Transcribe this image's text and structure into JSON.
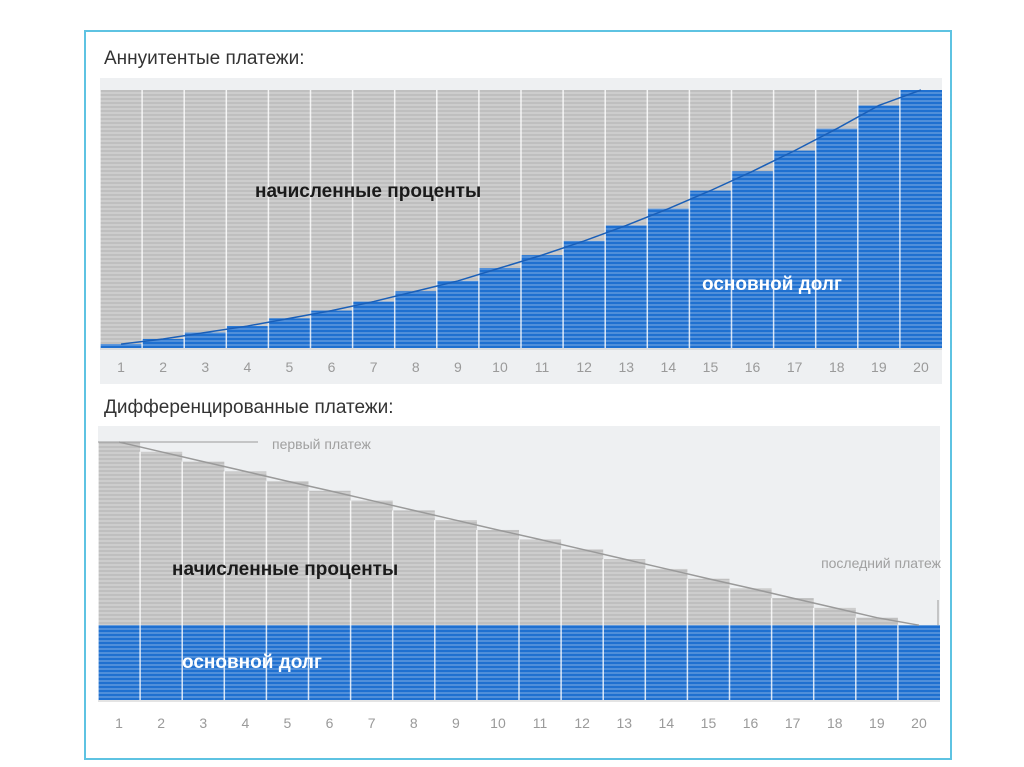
{
  "chart_data": [
    {
      "type": "area",
      "title": "Аннуитентые платежи:",
      "x": [
        1,
        2,
        3,
        4,
        5,
        6,
        7,
        8,
        9,
        10,
        11,
        12,
        13,
        14,
        15,
        16,
        17,
        18,
        19,
        20
      ],
      "series": [
        {
          "name": "основной долг",
          "values": [
            1.5,
            3.5,
            6,
            8.5,
            11.5,
            14.5,
            18,
            22,
            26,
            31,
            36,
            41.5,
            47.5,
            54,
            61,
            68.5,
            76.5,
            85,
            94,
            100
          ]
        },
        {
          "name": "начисленные проценты",
          "values": [
            98.5,
            96.5,
            94,
            91.5,
            88.5,
            85.5,
            82,
            78,
            74,
            69,
            64,
            58.5,
            52.5,
            46,
            39,
            31.5,
            23.5,
            15,
            6,
            0
          ]
        }
      ],
      "ylim": [
        0,
        100
      ],
      "colors": {
        "principal": "#1f70d0",
        "interest": "#bfbfbf"
      }
    },
    {
      "type": "area",
      "title": "Дифференцированные платежи:",
      "x": [
        1,
        2,
        3,
        4,
        5,
        6,
        7,
        8,
        9,
        10,
        11,
        12,
        13,
        14,
        15,
        16,
        17,
        18,
        19,
        20
      ],
      "series": [
        {
          "name": "основной долг",
          "values": [
            29,
            29,
            29,
            29,
            29,
            29,
            29,
            29,
            29,
            29,
            29,
            29,
            29,
            29,
            29,
            29,
            29,
            29,
            29,
            29
          ]
        },
        {
          "name": "начисленные проценты",
          "values": [
            71,
            67.2,
            63.4,
            59.6,
            55.8,
            52.1,
            48.3,
            44.5,
            40.7,
            36.9,
            33.2,
            29.4,
            25.6,
            21.8,
            18.0,
            14.3,
            10.5,
            6.7,
            2.9,
            0
          ]
        }
      ],
      "ylim": [
        0,
        100
      ],
      "annotations": [
        "первый платеж",
        "последний платеж"
      ],
      "colors": {
        "principal": "#1f70d0",
        "interest": "#bfbfbf"
      }
    }
  ]
}
